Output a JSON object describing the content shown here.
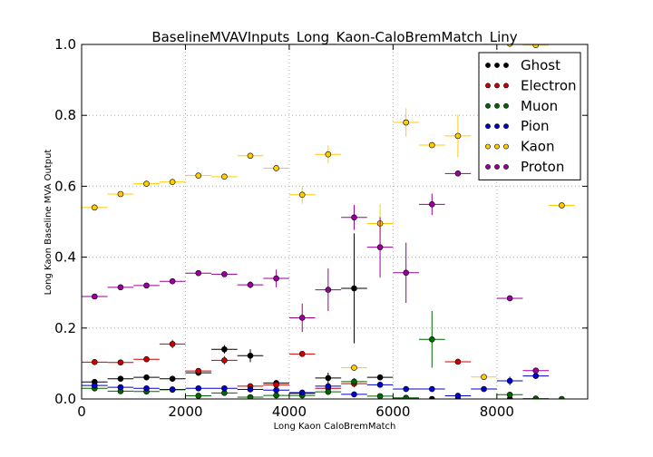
{
  "chart_data": {
    "type": "scatter",
    "title": "BaselineMVAVInputs_Long_Kaon-CaloBremMatch_Liny",
    "xlabel": "Long Kaon CaloBremMatch",
    "ylabel": "Long Kaon Baseline MVA Output",
    "xlim": [
      0,
      9750
    ],
    "ylim": [
      0,
      1.0
    ],
    "xticks": [
      0,
      2000,
      4000,
      6000,
      8000
    ],
    "yticks": [
      0.0,
      0.2,
      0.4,
      0.6,
      0.8,
      1.0
    ],
    "xtick_labels": [
      "0",
      "2000",
      "4000",
      "6000",
      "8000"
    ],
    "ytick_labels": [
      "0.0",
      "0.2",
      "0.4",
      "0.6",
      "0.8",
      "1.0"
    ],
    "grid": true,
    "legend_position": "top-right",
    "bin_half_width": 250,
    "series": [
      {
        "name": "Ghost",
        "color": "#000000",
        "points": [
          [
            250,
            0.048,
            0.004
          ],
          [
            750,
            0.057,
            0.004
          ],
          [
            1250,
            0.061,
            0.005
          ],
          [
            1750,
            0.057,
            0.006
          ],
          [
            2250,
            0.074,
            0.008
          ],
          [
            2750,
            0.14,
            0.012
          ],
          [
            3250,
            0.122,
            0.018
          ],
          [
            3750,
            0.045,
            0.008
          ],
          [
            4250,
            0.016,
            0.005
          ],
          [
            4750,
            0.059,
            0.015
          ],
          [
            5250,
            0.312,
            0.155
          ],
          [
            5750,
            0.061,
            0.008
          ],
          [
            6250,
            0.003,
            0.003
          ],
          [
            6750,
            0.0,
            0.002
          ],
          [
            7250,
            0.0,
            0.002
          ],
          [
            8250,
            0.0,
            0.002
          ]
        ]
      },
      {
        "name": "Electron",
        "color": "#cc0000",
        "points": [
          [
            250,
            0.104,
            0.004
          ],
          [
            750,
            0.103,
            0.004
          ],
          [
            1250,
            0.112,
            0.006
          ],
          [
            1750,
            0.155,
            0.012
          ],
          [
            2250,
            0.079,
            0.008
          ],
          [
            2750,
            0.109,
            0.012
          ],
          [
            3250,
            0.036,
            0.006
          ],
          [
            3750,
            0.04,
            0.005
          ],
          [
            4250,
            0.127,
            0.005
          ],
          [
            4750,
            0.03,
            0.008
          ],
          [
            5250,
            0.043,
            0.01
          ],
          [
            7250,
            0.105,
            0.005
          ]
        ]
      },
      {
        "name": "Muon",
        "color": "#006600",
        "points": [
          [
            250,
            0.03,
            0.003
          ],
          [
            750,
            0.022,
            0.003
          ],
          [
            1250,
            0.021,
            0.003
          ],
          [
            1750,
            0.026,
            0.004
          ],
          [
            2250,
            0.009,
            0.003
          ],
          [
            2750,
            0.017,
            0.004
          ],
          [
            3250,
            0.005,
            0.003
          ],
          [
            3750,
            0.01,
            0.003
          ],
          [
            4250,
            0.01,
            0.003
          ],
          [
            4750,
            0.02,
            0.005
          ],
          [
            5250,
            0.049,
            0.01
          ],
          [
            5750,
            0.008,
            0.003
          ],
          [
            6250,
            0.003,
            0.002
          ],
          [
            6750,
            0.168,
            0.08
          ],
          [
            8250,
            0.012,
            0.005
          ],
          [
            8750,
            0.001,
            0.001
          ],
          [
            9250,
            0.0,
            0.001
          ]
        ]
      },
      {
        "name": "Pion",
        "color": "#0000cc",
        "points": [
          [
            250,
            0.038,
            0.003
          ],
          [
            750,
            0.033,
            0.003
          ],
          [
            1250,
            0.03,
            0.003
          ],
          [
            1750,
            0.027,
            0.003
          ],
          [
            2250,
            0.03,
            0.003
          ],
          [
            2750,
            0.03,
            0.004
          ],
          [
            3250,
            0.027,
            0.004
          ],
          [
            3750,
            0.025,
            0.004
          ],
          [
            4250,
            0.018,
            0.004
          ],
          [
            4750,
            0.036,
            0.006
          ],
          [
            5250,
            0.013,
            0.004
          ],
          [
            5750,
            0.04,
            0.006
          ],
          [
            6250,
            0.028,
            0.005
          ],
          [
            6750,
            0.028,
            0.005
          ],
          [
            7250,
            0.009,
            0.004
          ],
          [
            7750,
            0.028,
            0.006
          ],
          [
            8250,
            0.051,
            0.012
          ],
          [
            8750,
            0.065,
            0.008
          ]
        ]
      },
      {
        "name": "Kaon",
        "color": "#ffcc00",
        "points": [
          [
            250,
            0.54,
            0.005
          ],
          [
            750,
            0.578,
            0.005
          ],
          [
            1250,
            0.607,
            0.006
          ],
          [
            1750,
            0.612,
            0.006
          ],
          [
            2250,
            0.63,
            0.006
          ],
          [
            2750,
            0.627,
            0.006
          ],
          [
            3250,
            0.686,
            0.008
          ],
          [
            3750,
            0.651,
            0.01
          ],
          [
            4250,
            0.576,
            0.025
          ],
          [
            4750,
            0.69,
            0.025
          ],
          [
            5250,
            0.088,
            0.006
          ],
          [
            5750,
            0.495,
            0.055
          ],
          [
            6250,
            0.78,
            0.04
          ],
          [
            6750,
            0.716,
            0.008
          ],
          [
            7250,
            0.742,
            0.06
          ],
          [
            7750,
            0.062,
            0.006
          ],
          [
            8250,
            1.002,
            0.01
          ],
          [
            8750,
            0.998,
            0.006
          ],
          [
            9250,
            0.546,
            0.006
          ]
        ]
      },
      {
        "name": "Proton",
        "color": "#990099",
        "points": [
          [
            250,
            0.289,
            0.004
          ],
          [
            750,
            0.315,
            0.004
          ],
          [
            1250,
            0.32,
            0.005
          ],
          [
            1750,
            0.332,
            0.005
          ],
          [
            2250,
            0.355,
            0.005
          ],
          [
            2750,
            0.352,
            0.006
          ],
          [
            3250,
            0.322,
            0.01
          ],
          [
            3750,
            0.34,
            0.025
          ],
          [
            4250,
            0.229,
            0.04
          ],
          [
            4750,
            0.308,
            0.06
          ],
          [
            5250,
            0.512,
            0.035
          ],
          [
            5750,
            0.428,
            0.085
          ],
          [
            6250,
            0.356,
            0.085
          ],
          [
            6750,
            0.549,
            0.03
          ],
          [
            7250,
            0.636,
            0.008
          ],
          [
            8250,
            0.284,
            0.004
          ],
          [
            8750,
            0.08,
            0.006
          ]
        ]
      }
    ]
  }
}
